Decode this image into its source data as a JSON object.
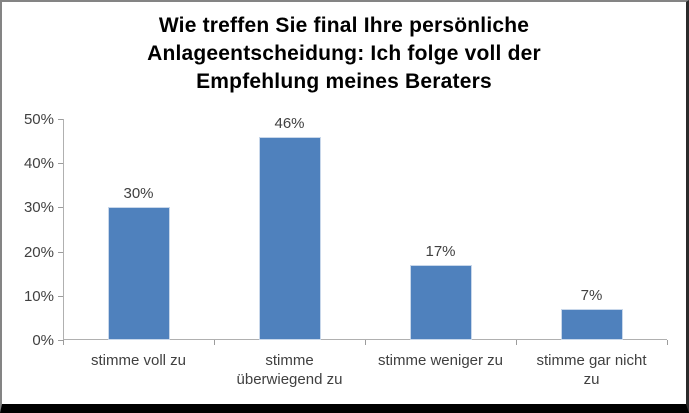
{
  "chart_data": {
    "type": "bar",
    "title": "Wie treffen Sie final Ihre persönliche Anlageentscheidung: Ich folge voll der Empfehlung meines Beraters",
    "categories": [
      "stimme voll zu",
      "stimme überwiegend zu",
      "stimme weniger zu",
      "stimme gar nicht zu"
    ],
    "category_display_lines": [
      [
        "stimme voll zu"
      ],
      [
        "stimme",
        "überwiegend zu"
      ],
      [
        "stimme weniger zu"
      ],
      [
        "stimme gar nicht",
        "zu"
      ]
    ],
    "values": [
      30,
      46,
      17,
      7
    ],
    "value_labels": [
      "30%",
      "46%",
      "17%",
      "7%"
    ],
    "xlabel": "",
    "ylabel": "",
    "ylim": [
      0,
      50
    ],
    "y_ticks": [
      "0%",
      "10%",
      "20%",
      "30%",
      "40%",
      "50%"
    ],
    "y_tick_values": [
      0,
      10,
      20,
      30,
      40,
      50
    ],
    "grid": "off",
    "legend": "none",
    "colors": {
      "bar_fill": "#4F81BD",
      "bar_edge": "#C8D7EA",
      "axis_line": "#B0B0B0",
      "tick": "#9C9C9C",
      "text": "#404040",
      "title": "#000000",
      "background": "#FFFFFF"
    }
  }
}
